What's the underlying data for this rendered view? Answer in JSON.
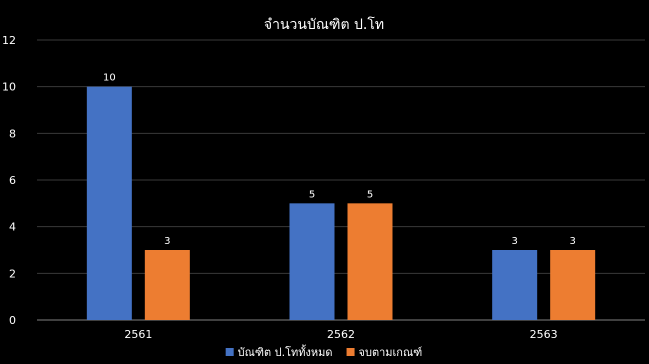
{
  "chart_data": {
    "type": "bar",
    "title": "จำนวนบัณฑิต ป.โท",
    "categories": [
      "2561",
      "2562",
      "2563"
    ],
    "series": [
      {
        "name": "บัณฑิต ป.โททั้งหมด",
        "values": [
          10,
          5,
          3
        ],
        "color": "#4472c4"
      },
      {
        "name": "จบตามเกณฑ์",
        "values": [
          3,
          5,
          3
        ],
        "color": "#ed7d31"
      }
    ],
    "xlabel": "",
    "ylabel": "",
    "ylim": [
      0,
      12
    ],
    "yticks": [
      0,
      2,
      4,
      6,
      8,
      10,
      12
    ],
    "grid": true,
    "legend": "bottom",
    "data_labels": true,
    "background": "#000000"
  }
}
